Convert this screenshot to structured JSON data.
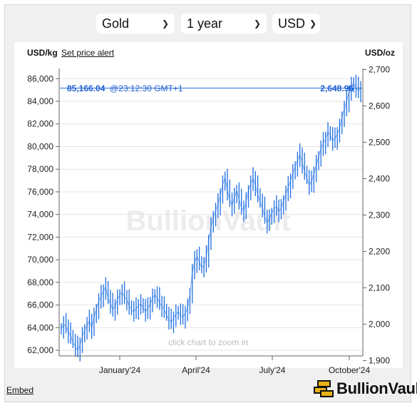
{
  "controls": {
    "metal": "Gold",
    "period": "1 year",
    "currency": "USD"
  },
  "header": {
    "left_unit": "USD/kg",
    "alert_link": "Set price alert",
    "right_unit": "USD/oz"
  },
  "current": {
    "price_kg": "85,166.04",
    "time": "@23:12:30 GMT+1",
    "price_oz": "2,648.96"
  },
  "hints": {
    "watermark": "BullionVault",
    "zoom": "click chart to zoom in"
  },
  "footer": {
    "embed": "Embed",
    "brand": "BullionVault"
  },
  "colors": {
    "series": "#1f6fe0",
    "current_line": "#2f6fd8",
    "logo_gold": "#e8b21a"
  },
  "chart_data": {
    "type": "line",
    "left_axis": {
      "label": "USD/kg",
      "ticks": [
        "62,000",
        "64,000",
        "66,000",
        "68,000",
        "70,000",
        "72,000",
        "74,000",
        "76,000",
        "78,000",
        "80,000",
        "82,000",
        "84,000",
        "86,000"
      ],
      "range": [
        61500,
        86900
      ]
    },
    "right_axis": {
      "label": "USD/oz",
      "ticks": [
        "1,900",
        "2,000",
        "2,100",
        "2,200",
        "2,300",
        "2,400",
        "2,500",
        "2,600",
        "2,700"
      ]
    },
    "x_ticks": [
      "January'24",
      "April'24",
      "July'24",
      "October'24"
    ],
    "current_value": 85166.04,
    "series_kg": [
      63900,
      64300,
      64100,
      63600,
      63300,
      62700,
      62300,
      62000,
      62500,
      63200,
      63800,
      64200,
      64600,
      64000,
      64900,
      65600,
      66300,
      66800,
      67200,
      67600,
      66600,
      66100,
      65600,
      65900,
      66500,
      66900,
      67100,
      66700,
      66500,
      65900,
      65600,
      65400,
      65700,
      65900,
      66100,
      65800,
      65400,
      65700,
      66100,
      66600,
      66900,
      66600,
      66200,
      65900,
      65600,
      65100,
      64700,
      64500,
      64800,
      65200,
      65400,
      65100,
      64900,
      65300,
      65700,
      67000,
      68900,
      69800,
      70300,
      69800,
      69300,
      69500,
      70300,
      71600,
      72900,
      73800,
      74300,
      74900,
      75700,
      76600,
      77300,
      76100,
      75300,
      74800,
      75500,
      76100,
      75300,
      74600,
      74300,
      75100,
      76100,
      76700,
      77200,
      76600,
      75800,
      75100,
      74600,
      73800,
      73300,
      73600,
      74100,
      74500,
      74700,
      74300,
      74500,
      75200,
      75800,
      76400,
      77000,
      77600,
      78200,
      78800,
      79300,
      78600,
      77800,
      77200,
      76600,
      76900,
      77600,
      78400,
      79100,
      79800,
      80300,
      80700,
      81300,
      81000,
      80500,
      80700,
      81100,
      81600,
      82600,
      83300,
      84000,
      84800,
      85300,
      85600,
      85200,
      84900,
      85166
    ]
  }
}
